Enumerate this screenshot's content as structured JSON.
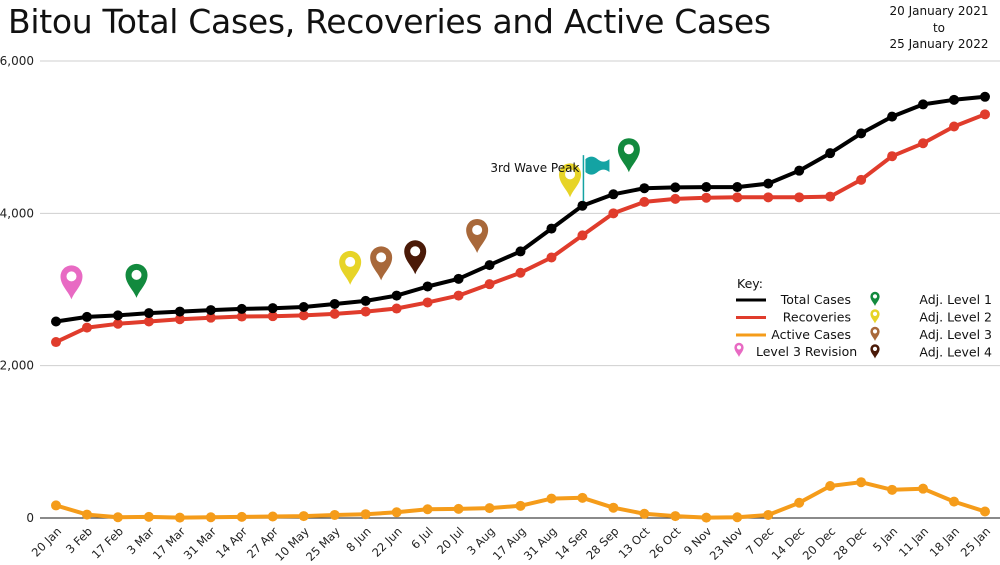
{
  "header": {
    "title": "Bitou Total Cases, Recoveries and Active Cases",
    "date_from": "20 January 2021",
    "date_to_word": "to",
    "date_to": "25 January 2022"
  },
  "chart_data": {
    "type": "line",
    "title": "Bitou Total Cases, Recoveries and Active Cases",
    "xlabel": "",
    "ylabel": "",
    "ylim": [
      0,
      6000
    ],
    "yticks": [
      0,
      2000,
      4000,
      6000
    ],
    "ytick_labels": [
      "0",
      "2,000",
      "4,000",
      "6,000"
    ],
    "grid": true,
    "categories": [
      "20 Jan",
      "3 Feb",
      "17 Feb",
      "3 Mar",
      "17 Mar",
      "31 Mar",
      "14 Apr",
      "27 Apr",
      "10 May",
      "25 May",
      "8 Jun",
      "22 Jun",
      "6 Jul",
      "20 Jul",
      "3 Aug",
      "17 Aug",
      "31 Aug",
      "14 Sep",
      "28 Sep",
      "13 Oct",
      "26 Oct",
      "9 Nov",
      "23 Nov",
      "7 Dec",
      "14 Dec",
      "20 Dec",
      "28 Dec",
      "5 Jan",
      "11 Jan",
      "18 Jan",
      "25 Jan"
    ],
    "series": [
      {
        "name": "Total Cases",
        "color": "#000000",
        "values": [
          2580,
          2640,
          2660,
          2690,
          2710,
          2730,
          2745,
          2755,
          2770,
          2810,
          2850,
          2920,
          3040,
          3140,
          3320,
          3500,
          3800,
          4100,
          4250,
          4330,
          4340,
          4345,
          4345,
          4390,
          4560,
          4790,
          5050,
          5270,
          5430,
          5490,
          5530
        ]
      },
      {
        "name": "Recoveries",
        "color": "#e03c2c",
        "values": [
          2310,
          2500,
          2550,
          2580,
          2610,
          2630,
          2645,
          2650,
          2660,
          2680,
          2710,
          2750,
          2830,
          2920,
          3070,
          3220,
          3420,
          3710,
          4000,
          4150,
          4190,
          4205,
          4210,
          4210,
          4210,
          4220,
          4440,
          4750,
          4920,
          5140,
          5300
        ]
      },
      {
        "name": "Active Cases",
        "color": "#f59c1a",
        "values": [
          165,
          45,
          10,
          15,
          5,
          10,
          15,
          20,
          25,
          40,
          50,
          75,
          115,
          120,
          130,
          160,
          255,
          265,
          135,
          55,
          25,
          5,
          10,
          40,
          200,
          420,
          470,
          370,
          385,
          215,
          85
        ]
      }
    ],
    "legend": {
      "position": "right",
      "title": "Key:",
      "entries": [
        {
          "label": "Total Cases",
          "color": "#000000",
          "kind": "line"
        },
        {
          "label": "Recoveries",
          "color": "#e03c2c",
          "kind": "line"
        },
        {
          "label": "Active Cases",
          "color": "#f59c1a",
          "kind": "line"
        },
        {
          "label": "Level 3 Revision",
          "color": "#e86ac3",
          "kind": "pin"
        },
        {
          "label": "Adj. Level 1",
          "color": "#128a3e",
          "kind": "pin"
        },
        {
          "label": "Adj. Level 2",
          "color": "#e7d427",
          "kind": "pin"
        },
        {
          "label": "Adj. Level 3",
          "color": "#a8683a",
          "kind": "pin"
        },
        {
          "label": "Adj. Level 4",
          "color": "#4a1a08",
          "kind": "pin"
        }
      ]
    },
    "markers": [
      {
        "type": "Level 3 Revision",
        "category_index": 0.5,
        "color": "#e86ac3",
        "value": 2870
      },
      {
        "type": "Adj. Level 1",
        "category_index": 2.6,
        "color": "#128a3e",
        "value": 2890
      },
      {
        "type": "Adj. Level 2",
        "category_index": 9.5,
        "color": "#e7d427",
        "value": 3060
      },
      {
        "type": "Adj. Level 3",
        "category_index": 10.5,
        "color": "#a8683a",
        "value": 3120
      },
      {
        "type": "Adj. Level 4",
        "category_index": 11.6,
        "color": "#4a1a08",
        "value": 3200
      },
      {
        "type": "Adj. Level 3",
        "category_index": 13.6,
        "color": "#a8683a",
        "value": 3480
      },
      {
        "type": "Adj. Level 2",
        "category_index": 16.6,
        "color": "#e7d427",
        "value": 4210
      },
      {
        "type": "Adj. Level 1",
        "category_index": 18.5,
        "color": "#128a3e",
        "value": 4540
      }
    ],
    "annotations": [
      {
        "text": "3rd Wave Peak",
        "category_index": 17.0,
        "value": 4280,
        "icon": "flag",
        "icon_color": "#14a3a3"
      }
    ]
  }
}
